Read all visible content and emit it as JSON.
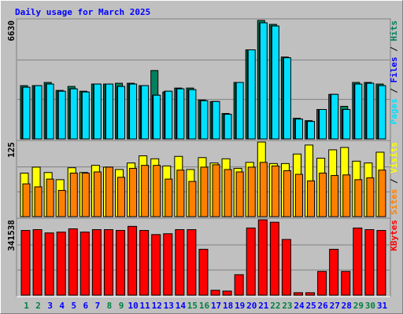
{
  "chart_data": {
    "type": "bar",
    "title": "Daily usage for March 2025",
    "categories": [
      "1",
      "2",
      "3",
      "4",
      "5",
      "6",
      "7",
      "8",
      "9",
      "10",
      "11",
      "12",
      "13",
      "14",
      "15",
      "16",
      "17",
      "18",
      "19",
      "20",
      "21",
      "22",
      "23",
      "24",
      "25",
      "26",
      "27",
      "28",
      "29",
      "30",
      "31"
    ],
    "label_color": "#0000ff",
    "weekend_label_color": "#008040",
    "weekend_categories": [
      "1",
      "2",
      "8",
      "9",
      "15",
      "16",
      "22",
      "23",
      "29",
      "30"
    ],
    "legend_separator": " / ",
    "panels": [
      {
        "ylim": [
          0,
          6630
        ],
        "yticks": [
          6630
        ],
        "series": [
          {
            "name": "Hits",
            "color": "#00805c",
            "values": [
              2982,
              2982,
              3160,
              2715,
              2937,
              2670,
              3071,
              3071,
              3115,
              3115,
              2982,
              3827,
              2626,
              2848,
              2848,
              2181,
              2092,
              1424,
              3160,
              4984,
              6630,
              6408,
              4584,
              1157,
              1024,
              1647,
              2492,
              1825,
              3160,
              3160,
              3071
            ]
          },
          {
            "name": "Files",
            "color": "#0000ff",
            "values": [
              2893,
              2982,
              3071,
              2670,
              2804,
              2626,
              3071,
              3071,
              2937,
              3071,
              2982,
              2448,
              2670,
              2804,
              2759,
              2136,
              2092,
              1380,
              3160,
              4984,
              6497,
              6319,
              4539,
              1113,
              979,
              1647,
              2492,
              1647,
              3071,
              3115,
              2982
            ]
          },
          {
            "name": "Pages",
            "color": "#00e0ff",
            "values": [
              2893,
              2982,
              3071,
              2670,
              2804,
              2626,
              3071,
              3071,
              2937,
              3071,
              2982,
              2448,
              2670,
              2804,
              2759,
              2136,
              2092,
              1380,
              3160,
              4984,
              6497,
              6319,
              4539,
              1113,
              979,
              1647,
              2492,
              1647,
              3071,
              3115,
              2982
            ]
          }
        ]
      },
      {
        "ylim": [
          0,
          125
        ],
        "yticks": [
          125
        ],
        "series": [
          {
            "name": "Visits",
            "color": "#ffff00",
            "values": [
              73,
              83,
              74,
              62,
              82,
              74,
              86,
              83,
              79,
              90,
              102,
              97,
              85,
              101,
              79,
              99,
              90,
              97,
              81,
              91,
              125,
              89,
              89,
              105,
              120,
              98,
              112,
              116,
              93,
              90,
              108
            ]
          },
          {
            "name": "Sites",
            "color": "#ff8000",
            "values": [
              55,
              50,
              63,
              44,
              73,
              73,
              75,
              83,
              66,
              81,
              86,
              86,
              63,
              78,
              59,
              83,
              87,
              79,
              75,
              83,
              91,
              85,
              77,
              71,
              60,
              73,
              69,
              70,
              62,
              65,
              78
            ]
          }
        ]
      },
      {
        "ylim": [
          0,
          341538
        ],
        "yticks": [
          341538
        ],
        "series": [
          {
            "name": "KBytes",
            "color": "#ff0000",
            "values": [
              293248,
              296960,
              282112,
              285824,
              300672,
              285824,
              296960,
              296960,
              293248,
              311808,
              293248,
              274688,
              278400,
              296960,
              296960,
              207872,
              22272,
              18560,
              92800,
              304384,
              341538,
              330368,
              252416,
              11136,
              11136,
              107648,
              207872,
              107648,
              304384,
              296960,
              293248
            ]
          }
        ]
      }
    ]
  }
}
